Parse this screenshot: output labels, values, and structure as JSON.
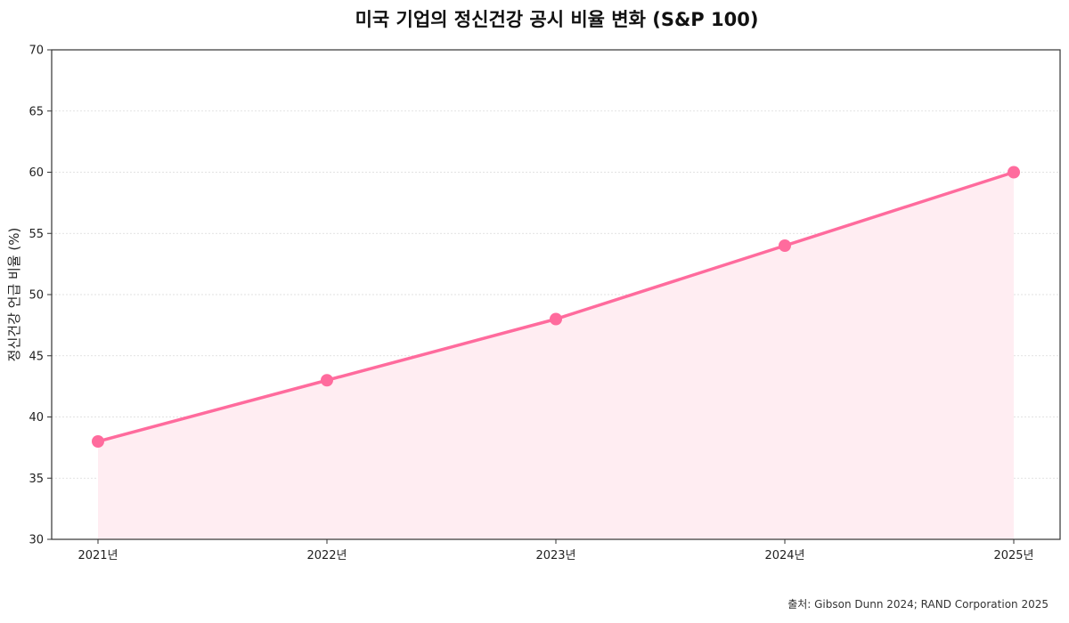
{
  "chart_data": {
    "type": "line",
    "title": "미국 기업의 정신건강 공시 비율 변화 (S&P 100)",
    "xlabel": "",
    "ylabel": "정신건강 언급 비율 (%)",
    "categories": [
      "2021년",
      "2022년",
      "2023년",
      "2024년",
      "2025년"
    ],
    "series": [
      {
        "values": [
          38,
          43,
          48,
          54,
          60
        ]
      }
    ],
    "ylim": [
      30,
      70
    ],
    "yticks": [
      30,
      35,
      40,
      45,
      50,
      55,
      60,
      65,
      70
    ],
    "grid": true,
    "area_fill": true,
    "colors": {
      "line": "#ff6b9d",
      "area": "#ffedf2",
      "grid": "#d9d9d9",
      "axis": "#333333"
    },
    "source": "출처: Gibson Dunn 2024; RAND Corporation 2025"
  }
}
